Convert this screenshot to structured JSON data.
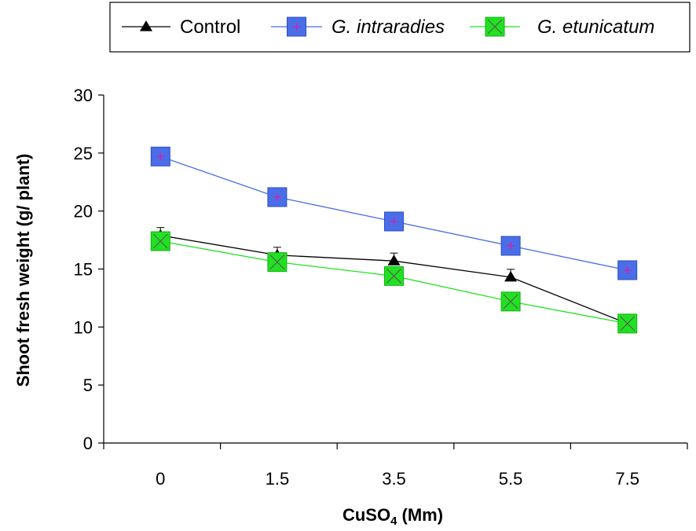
{
  "chart_data": {
    "type": "line",
    "categories": [
      "0",
      "1.5",
      "3.5",
      "5.5",
      "7.5"
    ],
    "xlabel_main": "CuSO",
    "xlabel_sub": "4",
    "xlabel_unit": " (Mm)",
    "ylabel": "Shoot fresh weight (g/ plant)",
    "ylim": [
      0,
      30
    ],
    "yticks": [
      "0",
      "5",
      "10",
      "15",
      "20",
      "25",
      "30"
    ],
    "grid": false,
    "legend_position": "top",
    "series": [
      {
        "name": "Control",
        "values": [
          17.9,
          16.2,
          15.7,
          14.3,
          10.3
        ],
        "color": "#000000",
        "marker": "triangle",
        "italic": false
      },
      {
        "name": "G. intraradies",
        "values": [
          24.7,
          21.2,
          19.1,
          17.0,
          14.9
        ],
        "color": "#4a6ee8",
        "marker": "square",
        "italic": true
      },
      {
        "name": "G. etunicatum",
        "values": [
          17.4,
          15.6,
          14.4,
          12.2,
          10.3
        ],
        "color": "#22e022",
        "marker": "square-x",
        "italic": true
      }
    ]
  }
}
